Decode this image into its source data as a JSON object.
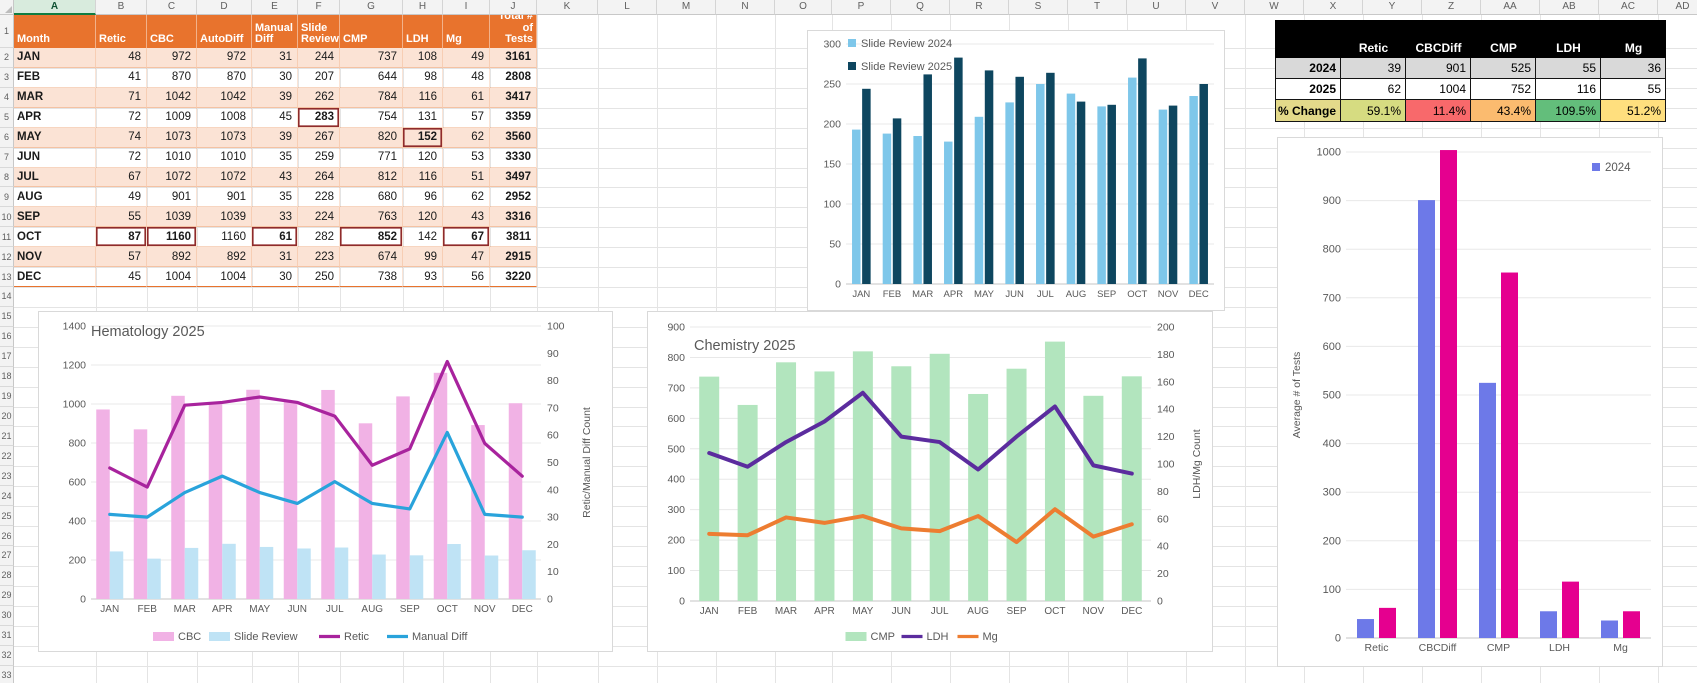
{
  "spreadsheet": {
    "columns": [
      "A",
      "B",
      "C",
      "D",
      "E",
      "F",
      "G",
      "H",
      "I",
      "J",
      "K",
      "L",
      "M",
      "N",
      "O",
      "P",
      "Q",
      "R",
      "S",
      "T",
      "U",
      "V",
      "W",
      "X",
      "Y",
      "Z",
      "AA",
      "AB",
      "AC",
      "AD"
    ],
    "selected_column": "A",
    "first_row": 1,
    "last_row": 33
  },
  "data_table": {
    "headers": [
      "Month",
      "Retic",
      "CBC",
      "AutoDiff",
      "Manual Diff",
      "Slide Review",
      "CMP",
      "LDH",
      "Mg",
      "Total # of Tests"
    ],
    "rows": [
      [
        "JAN",
        48,
        972,
        972,
        31,
        244,
        737,
        108,
        49,
        3161
      ],
      [
        "FEB",
        41,
        870,
        870,
        30,
        207,
        644,
        98,
        48,
        2808
      ],
      [
        "MAR",
        71,
        1042,
        1042,
        39,
        262,
        784,
        116,
        61,
        3417
      ],
      [
        "APR",
        72,
        1009,
        1008,
        45,
        283,
        754,
        131,
        57,
        3359
      ],
      [
        "MAY",
        74,
        1073,
        1073,
        39,
        267,
        820,
        152,
        62,
        3560
      ],
      [
        "JUN",
        72,
        1010,
        1010,
        35,
        259,
        771,
        120,
        53,
        3330
      ],
      [
        "JUL",
        67,
        1072,
        1072,
        43,
        264,
        812,
        116,
        51,
        3497
      ],
      [
        "AUG",
        49,
        901,
        901,
        35,
        228,
        680,
        96,
        62,
        2952
      ],
      [
        "SEP",
        55,
        1039,
        1039,
        33,
        224,
        763,
        120,
        43,
        3316
      ],
      [
        "OCT",
        87,
        1160,
        1160,
        61,
        282,
        852,
        142,
        67,
        3811
      ],
      [
        "NOV",
        57,
        892,
        892,
        31,
        223,
        674,
        99,
        47,
        2915
      ],
      [
        "DEC",
        45,
        1004,
        1004,
        30,
        250,
        738,
        93,
        56,
        3220
      ]
    ],
    "highlighted_cells": [
      [
        3,
        5
      ],
      [
        4,
        7
      ],
      [
        9,
        1
      ],
      [
        9,
        2
      ],
      [
        9,
        4
      ],
      [
        9,
        6
      ],
      [
        9,
        8
      ]
    ],
    "header_bg": "#E8732D",
    "shaded_row_bg": "#FBE3D5",
    "highlight_border": "#8F2B2B"
  },
  "summary_table": {
    "headers": [
      "",
      "Retic",
      "CBCDiff",
      "CMP",
      "LDH",
      "Mg"
    ],
    "header_bg": "#000000",
    "header_fg": "#FFFFFF",
    "rows": [
      {
        "label": "2024",
        "values": [
          "39",
          "901",
          "525",
          "55",
          "36"
        ],
        "bg": "#D9D9D9"
      },
      {
        "label": "2025",
        "values": [
          "62",
          "1004",
          "752",
          "116",
          "55"
        ],
        "bg": "#FFFFFF"
      },
      {
        "label": "% Change",
        "values": [
          "59.1%",
          "11.4%",
          "43.4%",
          "109.5%",
          "51.2%"
        ],
        "label_bg": "#E3D98A",
        "value_bgs": [
          "#D6DC81",
          "#F8696B",
          "#FBBB6F",
          "#63BE7B",
          "#FFDF7E"
        ]
      }
    ]
  },
  "chart_data": [
    {
      "id": "slide_review_chart",
      "type": "bar",
      "title": "",
      "categories": [
        "JAN",
        "FEB",
        "MAR",
        "APR",
        "MAY",
        "JUN",
        "JUL",
        "AUG",
        "SEP",
        "OCT",
        "NOV",
        "DEC"
      ],
      "series": [
        {
          "name": "Slide Review 2024",
          "color": "#7EC7EA",
          "values": [
            193,
            188,
            185,
            178,
            209,
            227,
            250,
            238,
            222,
            258,
            218,
            235
          ]
        },
        {
          "name": "Slide Review 2025",
          "color": "#0E465F",
          "values": [
            244,
            207,
            262,
            283,
            267,
            259,
            264,
            228,
            224,
            282,
            223,
            250
          ]
        }
      ],
      "ylim": [
        0,
        300
      ],
      "ytick": 50,
      "grid": true,
      "legend_position": "top-left"
    },
    {
      "id": "hematology_chart",
      "type": "combo",
      "title": "Hematology 2025",
      "categories": [
        "JAN",
        "FEB",
        "MAR",
        "APR",
        "MAY",
        "JUN",
        "JUL",
        "AUG",
        "SEP",
        "OCT",
        "NOV",
        "DEC"
      ],
      "bar_series": [
        {
          "name": "CBC",
          "color": "#F1B2E5",
          "axis": "left",
          "values": [
            972,
            870,
            1042,
            1009,
            1073,
            1010,
            1072,
            901,
            1039,
            1160,
            892,
            1004
          ]
        },
        {
          "name": "Slide Review",
          "color": "#BFE3F5",
          "axis": "left",
          "values": [
            244,
            207,
            262,
            283,
            267,
            259,
            264,
            228,
            224,
            282,
            223,
            250
          ]
        }
      ],
      "line_series": [
        {
          "name": "Retic",
          "color": "#A8239D",
          "axis": "right",
          "values": [
            48,
            41,
            71,
            72,
            74,
            72,
            67,
            49,
            55,
            87,
            57,
            45
          ]
        },
        {
          "name": "Manual Diff",
          "color": "#29A3DB",
          "axis": "right",
          "values": [
            31,
            30,
            39,
            45,
            39,
            35,
            43,
            35,
            33,
            61,
            31,
            30
          ]
        }
      ],
      "left_ylim": [
        0,
        1400
      ],
      "left_ytick": 200,
      "right_ylim": [
        0,
        100
      ],
      "right_ytick": 10,
      "right_axis_label": "Retic/Manual Diff Count",
      "grid": true,
      "legend_position": "bottom"
    },
    {
      "id": "chemistry_chart",
      "type": "combo",
      "title": "Chemistry 2025",
      "categories": [
        "JAN",
        "FEB",
        "MAR",
        "APR",
        "MAY",
        "JUN",
        "JUL",
        "AUG",
        "SEP",
        "OCT",
        "NOV",
        "DEC"
      ],
      "bar_series": [
        {
          "name": "CMP",
          "color": "#B2E5BE",
          "axis": "left",
          "values": [
            737,
            644,
            784,
            754,
            820,
            771,
            812,
            680,
            763,
            852,
            674,
            738
          ]
        }
      ],
      "line_series": [
        {
          "name": "LDH",
          "color": "#5B2C9E",
          "axis": "right",
          "values": [
            108,
            98,
            116,
            131,
            152,
            120,
            116,
            96,
            120,
            142,
            99,
            93
          ]
        },
        {
          "name": "Mg",
          "color": "#ED7D31",
          "axis": "right",
          "values": [
            49,
            48,
            61,
            57,
            62,
            53,
            51,
            62,
            43,
            67,
            47,
            56
          ]
        }
      ],
      "left_ylim": [
        0,
        900
      ],
      "left_ytick": 100,
      "right_ylim": [
        0,
        200
      ],
      "right_ytick": 20,
      "right_axis_label": "LDH/Mg Count",
      "grid": true,
      "legend_position": "bottom"
    },
    {
      "id": "yearly_comparison_chart",
      "type": "bar",
      "title": "",
      "categories": [
        "Retic",
        "CBCDiff",
        "CMP",
        "LDH",
        "Mg"
      ],
      "series": [
        {
          "name": "2024",
          "color": "#6D79E8",
          "values": [
            39,
            901,
            525,
            55,
            36
          ]
        },
        {
          "name": "2025",
          "color": "#E5008F",
          "values": [
            62,
            1004,
            752,
            116,
            55
          ]
        }
      ],
      "ylim": [
        0,
        1000
      ],
      "ytick": 100,
      "ylabel": "Average # of Tests",
      "grid": true,
      "legend_position": "top-right",
      "legend_entries": [
        "2024"
      ]
    }
  ]
}
